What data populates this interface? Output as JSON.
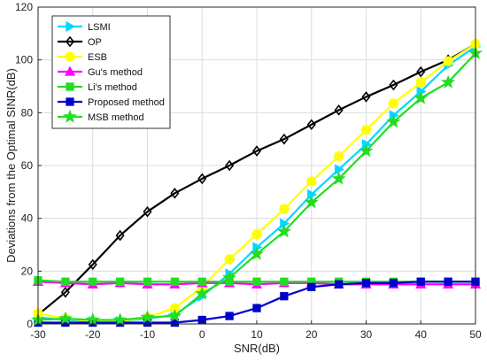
{
  "chart_data": {
    "type": "line",
    "title": "",
    "xlabel": "SNR(dB)",
    "ylabel": "Deviations from the Optimal SINR(dB)",
    "xlim": [
      -30,
      50
    ],
    "ylim": [
      0,
      120
    ],
    "xticks": [
      -30,
      -20,
      -10,
      0,
      10,
      20,
      30,
      40,
      50
    ],
    "yticks": [
      0,
      20,
      40,
      60,
      80,
      100,
      120
    ],
    "grid": true,
    "legend_position": "top-left",
    "x": [
      -30,
      -25,
      -20,
      -15,
      -10,
      -5,
      0,
      5,
      10,
      15,
      20,
      25,
      30,
      35,
      40,
      45,
      50
    ],
    "series": [
      {
        "name": "LSMI",
        "color": "#00d8ff",
        "marker": "triangle-right",
        "values": [
          2.5,
          1.5,
          1.0,
          1.0,
          2.0,
          3.5,
          10.5,
          19.0,
          29.0,
          38.0,
          49.0,
          58.5,
          68.0,
          79.0,
          88.0,
          98.0,
          105.0
        ]
      },
      {
        "name": "OP",
        "color": "#000000",
        "marker": "diamond",
        "values": [
          3.5,
          12.0,
          22.5,
          33.5,
          42.5,
          49.5,
          55.0,
          60.0,
          65.5,
          70.0,
          75.5,
          81.0,
          86.0,
          90.5,
          95.5,
          100.0,
          106.0
        ]
      },
      {
        "name": "ESB",
        "color": "#ffff00",
        "marker": "circle",
        "values": [
          4.0,
          2.0,
          1.0,
          1.0,
          2.5,
          6.0,
          14.0,
          24.5,
          34.0,
          43.5,
          54.0,
          63.5,
          73.5,
          83.5,
          91.5,
          99.5,
          106.0
        ]
      },
      {
        "name": "Gu's method",
        "color": "#ff00ff",
        "marker": "triangle-up",
        "values": [
          16.0,
          15.5,
          15.0,
          15.5,
          15.0,
          15.0,
          15.5,
          15.5,
          15.0,
          15.5,
          15.5,
          15.0,
          15.0,
          15.0,
          15.0,
          15.0,
          15.0
        ]
      },
      {
        "name": "Li's method",
        "color": "#22dd22",
        "marker": "square",
        "values": [
          16.5,
          16.0,
          16.0,
          16.0,
          16.0,
          16.0,
          16.0,
          16.0,
          16.0,
          16.0,
          16.0,
          16.0,
          16.0,
          16.0,
          16.0,
          16.0,
          16.0
        ]
      },
      {
        "name": "Proposed method",
        "color": "#0000cc",
        "marker": "square",
        "values": [
          0.5,
          0.5,
          0.5,
          0.5,
          0.5,
          0.5,
          1.5,
          3.0,
          6.0,
          10.5,
          14.0,
          15.0,
          15.5,
          15.5,
          16.0,
          16.0,
          16.0
        ]
      },
      {
        "name": "MSB method",
        "color": "#22dd22",
        "marker": "star",
        "values": [
          1.5,
          2.0,
          1.5,
          1.5,
          2.5,
          3.0,
          11.5,
          17.5,
          26.5,
          35.0,
          46.0,
          55.0,
          65.5,
          76.5,
          85.5,
          91.5,
          102.5
        ]
      }
    ]
  }
}
